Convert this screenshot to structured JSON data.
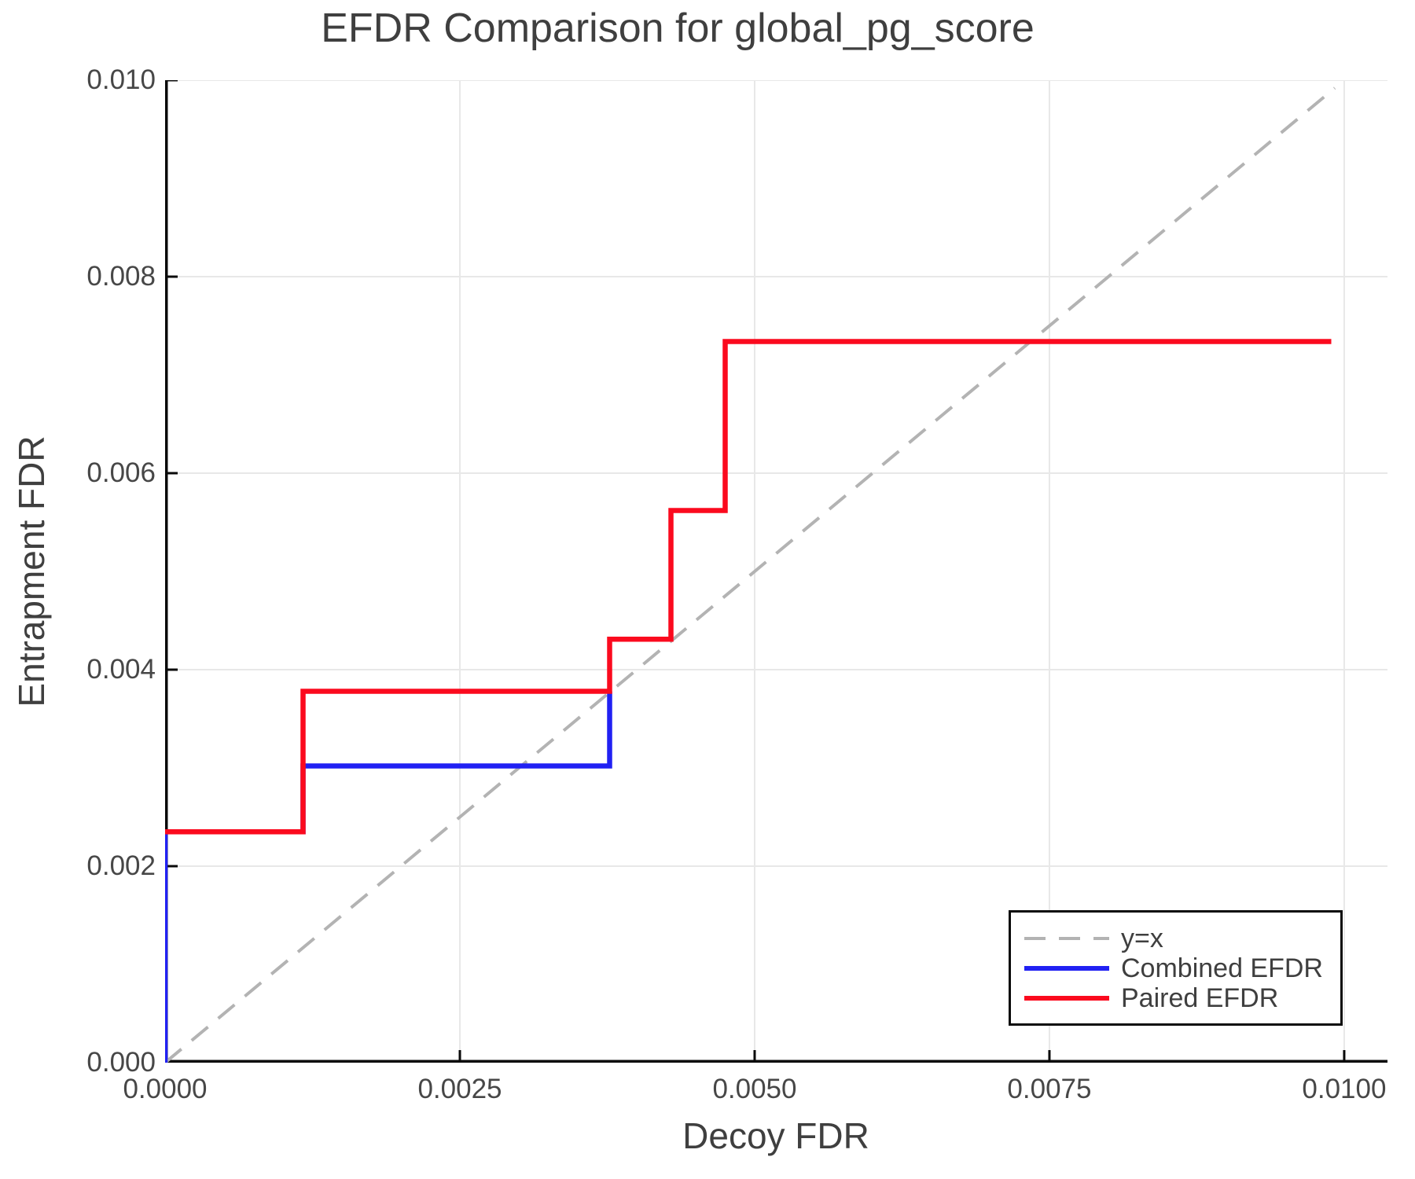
{
  "title": "EFDR Comparison for global_pg_score",
  "axes": {
    "xlabel": "Decoy FDR",
    "ylabel": "Entrapment FDR"
  },
  "legend": {
    "position": "bottom-right",
    "items": [
      {
        "label": "y=x",
        "color": "#b3b3b3",
        "dash": true
      },
      {
        "label": "Combined EFDR",
        "color": "#2121f3",
        "dash": false
      },
      {
        "label": "Paired EFDR",
        "color": "#fb0a1e",
        "dash": false
      }
    ]
  },
  "style": {
    "background": "#ffffff",
    "grid_color": "#e8e8e8",
    "spine_color": "#0a0a0a",
    "tick_color": "#0a0a0a",
    "text_color": "#3f3f3f",
    "tick_label_color": "#474747"
  },
  "chart_data": {
    "type": "line",
    "title": "EFDR Comparison for global_pg_score",
    "xlabel": "Decoy FDR",
    "ylabel": "Entrapment FDR",
    "xlim": [
      0,
      0.010367
    ],
    "ylim": [
      0,
      0.01
    ],
    "grid": true,
    "legend_position": "bottom-right",
    "x_ticks": {
      "values": [
        0.0,
        0.0025,
        0.005,
        0.0075,
        0.01
      ],
      "labels": [
        "0.0000",
        "0.0025",
        "0.0050",
        "0.0075",
        "0.0100"
      ]
    },
    "y_ticks": {
      "values": [
        0.0,
        0.002,
        0.004,
        0.006,
        0.008,
        0.01
      ],
      "labels": [
        "0.000",
        "0.002",
        "0.004",
        "0.006",
        "0.008",
        "0.010"
      ]
    },
    "series": [
      {
        "name": "y=x",
        "style": "dashed",
        "color": "#b3b3b3",
        "width": 4,
        "dasharray": "27 17",
        "points": [
          [
            0,
            0
          ],
          [
            0.00992,
            0.00992
          ]
        ]
      },
      {
        "name": "Combined EFDR",
        "style": "solid",
        "color": "#2121f3",
        "width": 6.5,
        "points": [
          [
            0,
            0
          ],
          [
            0,
            0.00235
          ],
          [
            0.00117,
            0.00235
          ],
          [
            0.00117,
            0.00302
          ],
          [
            0.00377,
            0.00302
          ],
          [
            0.00377,
            0.00378
          ]
        ]
      },
      {
        "name": "Paired EFDR",
        "style": "solid",
        "color": "#fb0a1e",
        "width": 6.5,
        "points": [
          [
            0,
            0.00235
          ],
          [
            0.00117,
            0.00235
          ],
          [
            0.00117,
            0.00378
          ],
          [
            0.00377,
            0.00378
          ],
          [
            0.00377,
            0.00431
          ],
          [
            0.00429,
            0.00431
          ],
          [
            0.00429,
            0.00562
          ],
          [
            0.00475,
            0.00562
          ],
          [
            0.00475,
            0.00734
          ],
          [
            0.00989,
            0.00734
          ]
        ]
      }
    ]
  }
}
